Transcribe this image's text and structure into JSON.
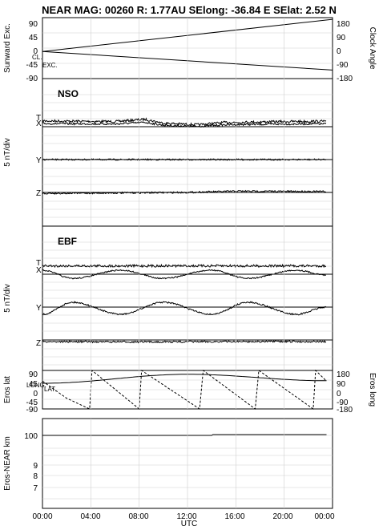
{
  "title": "NEAR MAG: 00260  R: 1.77AU  SElong:  -36.84 E  SElat:     2.52 N",
  "panels": {
    "p1": {
      "left_label": "Sunward Exc.",
      "right_label": "Clock Angle",
      "left_ticks": [
        "90",
        "45",
        "0",
        "-45",
        "-90"
      ],
      "right_ticks": [
        "180",
        "90",
        "0",
        "-90",
        "-180"
      ],
      "trace_labels": [
        "CL.",
        "EXC."
      ]
    },
    "p2": {
      "name": "NSO",
      "scale_label": "5 nT/div",
      "components": [
        "T",
        "X",
        "Y",
        "Z"
      ]
    },
    "p3": {
      "name": "EBF",
      "scale_label": "5 nT/div",
      "components": [
        "T",
        "X",
        "Y",
        "Z"
      ]
    },
    "p4": {
      "left_label": "Eros lat",
      "right_label": "Eros long",
      "left_ticks": [
        "90",
        "45",
        "0",
        "-45",
        "-90"
      ],
      "right_ticks": [
        "180",
        "90",
        "0",
        "-90",
        "-180"
      ],
      "trace_labels": [
        "LONG.",
        "LAT."
      ]
    },
    "p5": {
      "left_label": "Eros-NEAR km",
      "left_ticks": [
        "100",
        "9",
        "8",
        "7"
      ]
    }
  },
  "x_axis": {
    "label": "UTC",
    "ticks": [
      "00:00",
      "04:00",
      "08:00",
      "12:00",
      "16:00",
      "20:00",
      "00:00"
    ]
  },
  "chart_data": {
    "type": "line",
    "x_unit": "hours UTC",
    "xlim": [
      0,
      24
    ],
    "subplots": [
      {
        "id": "orientation",
        "series": [
          {
            "name": "CL.",
            "x": [
              0,
              24
            ],
            "y": [
              -20,
              170
            ]
          },
          {
            "name": "EXC.",
            "x": [
              0,
              24
            ],
            "y": [
              -10,
              -65
            ]
          }
        ],
        "ylim_left": [
          -90,
          90
        ],
        "ylim_right": [
          -180,
          180
        ]
      },
      {
        "id": "NSO",
        "series": [
          {
            "name": "T",
            "x": [
              0,
              6,
              8.5,
              10,
              12.8,
              15,
              20,
              23.5
            ],
            "y": [
              0.3,
              0.1,
              0.8,
              -0.4,
              -0.9,
              -0.2,
              0.1,
              0.2
            ]
          },
          {
            "name": "Y",
            "x": [
              0,
              8,
              16,
              23.5
            ],
            "y": [
              0,
              0,
              0,
              0
            ]
          },
          {
            "name": "Z",
            "x": [
              0,
              8,
              12,
              16,
              23.5
            ],
            "y": [
              -0.3,
              -0.1,
              0,
              0.4,
              0.3
            ]
          }
        ]
      },
      {
        "id": "EBF",
        "series": [
          {
            "name": "T",
            "x": [
              0,
              12,
              23.5
            ],
            "y": [
              0.8,
              0.8,
              0.8
            ]
          },
          {
            "name": "X",
            "x": [
              0,
              2.5,
              6.5,
              10,
              14,
              17,
              21,
              23.5
            ],
            "y": [
              0.5,
              -1.2,
              0.5,
              -1.2,
              0.5,
              -1.2,
              0.5,
              -0.5
            ]
          },
          {
            "name": "Y",
            "x": [
              0,
              2.5,
              6.5,
              10,
              14,
              17,
              21,
              23.5
            ],
            "y": [
              -1.5,
              1.0,
              -1.5,
              1.0,
              -1.5,
              1.0,
              -1.5,
              0
            ]
          },
          {
            "name": "Z",
            "x": [
              0,
              8,
              16,
              23.5
            ],
            "y": [
              0,
              -0.1,
              0,
              0
            ]
          }
        ]
      },
      {
        "id": "eros_position",
        "series": [
          {
            "name": "LAT.",
            "x": [
              0,
              12,
              23.5
            ],
            "y": [
              30,
              72,
              42
            ]
          },
          {
            "name": "LONG.",
            "x": [
              0,
              2,
              3.9,
              4.1,
              8,
              8.2,
              13,
              13.3,
              17.6,
              17.9,
              22.4,
              22.6,
              23.5
            ],
            "y": [
              80,
              -80,
              -180,
              180,
              -180,
              180,
              -180,
              180,
              -180,
              180,
              -180,
              180,
              80
            ]
          }
        ],
        "ylim_left": [
          -90,
          90
        ],
        "ylim_right": [
          -180,
          180
        ]
      },
      {
        "id": "range",
        "series": [
          {
            "name": "Eros-NEAR km",
            "x": [
              0,
              14,
              14.1,
              23.5
            ],
            "y": [
              100,
              100,
              101,
              101
            ]
          }
        ]
      }
    ]
  }
}
